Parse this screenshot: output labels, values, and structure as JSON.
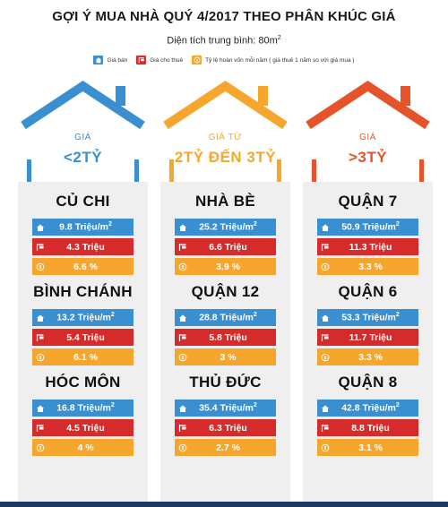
{
  "header": {
    "title": "GỢI Ý MUA NHÀ QUÝ 4/2017 THEO PHÂN KHÚC GIÁ",
    "subtitle": "Diện tích trung bình: 80m",
    "subtitle_sup": "2"
  },
  "legend": [
    {
      "label": "Giá bán",
      "color": "#3a8fd1",
      "icon": "house-icon"
    },
    {
      "label": "Giá cho thuê",
      "color": "#d62b2b",
      "icon": "rent-sign-icon"
    },
    {
      "label": "Tỷ lệ hoàn vốn mỗi năm ( giá thuê 1 năm so với giá mua )",
      "color": "#f7a62d",
      "icon": "coin-icon"
    }
  ],
  "columns": [
    {
      "color": "#3a8fd1",
      "label": "GIÁ",
      "value": "<2TỶ",
      "districts": [
        {
          "name": "CỦ CHI",
          "price": "9.8 Triệu/m",
          "rent": "4.3 Triệu",
          "yield": "6.6 %"
        },
        {
          "name": "BÌNH CHÁNH",
          "price": "13.2 Triệu/m",
          "rent": "5.4 Triệu",
          "yield": "6.1 %"
        },
        {
          "name": "HÓC MÔN",
          "price": "16.8 Triệu/m",
          "rent": "4.5 Triệu",
          "yield": "4 %"
        }
      ]
    },
    {
      "color": "#f7a62d",
      "label": "GIÁ TỪ",
      "value": "2TỶ ĐẾN 3TỶ",
      "districts": [
        {
          "name": "NHÀ BÈ",
          "price": "25.2 Triệu/m",
          "rent": "6.6 Triệu",
          "yield": "3.9 %"
        },
        {
          "name": "QUẬN 12",
          "price": "28.8 Triệu/m",
          "rent": "5.8 Triệu",
          "yield": "3 %"
        },
        {
          "name": "THỦ ĐỨC",
          "price": "35.4 Triệu/m",
          "rent": "6.3 Triệu",
          "yield": "2.7 %"
        }
      ]
    },
    {
      "color": "#e5532a",
      "label": "GIÁ",
      "value": ">3TỶ",
      "districts": [
        {
          "name": "QUẬN 7",
          "price": "50.9 Triệu/m",
          "rent": "11.3 Triệu",
          "yield": "3.3 %"
        },
        {
          "name": "QUẬN 6",
          "price": "53.3 Triệu/m",
          "rent": "11.7 Triệu",
          "yield": "3.3 %"
        },
        {
          "name": "QUẬN 8",
          "price": "42.8 Triệu/m",
          "rent": "8.8 Triệu",
          "yield": "3.1 %"
        }
      ]
    }
  ],
  "unit_sup": "2"
}
